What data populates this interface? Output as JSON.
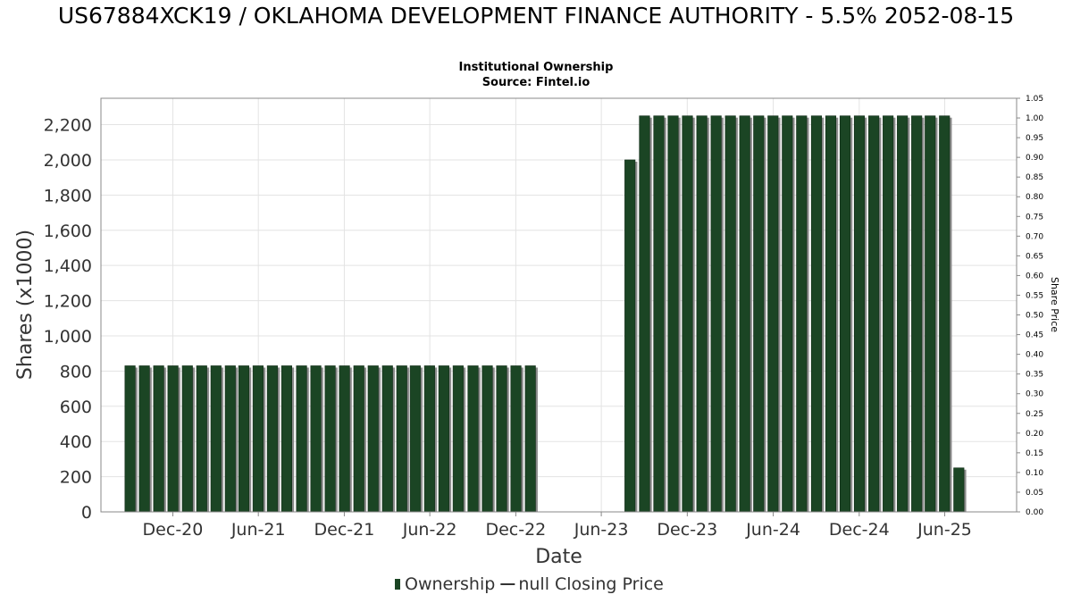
{
  "chart_data": {
    "type": "bar",
    "title": "US67884XCK19 / OKLAHOMA DEVELOPMENT FINANCE AUTHORITY - 5.5% 2052-08-15",
    "subtitle": "Institutional Ownership",
    "source": "Source: Fintel.io",
    "xlabel": "Date",
    "ylabel": "Shares (x1000)",
    "ylabel_right": "Share Price",
    "ylim": [
      0,
      2350
    ],
    "ylim_right": [
      0,
      1.05
    ],
    "grid": true,
    "legend_position": "bottom",
    "y_ticks": [
      {
        "value": 0,
        "label": "0"
      },
      {
        "value": 200,
        "label": "200"
      },
      {
        "value": 400,
        "label": "400"
      },
      {
        "value": 600,
        "label": "600"
      },
      {
        "value": 800,
        "label": "800"
      },
      {
        "value": 1000,
        "label": "1,000"
      },
      {
        "value": 1200,
        "label": "1,200"
      },
      {
        "value": 1400,
        "label": "1,400"
      },
      {
        "value": 1600,
        "label": "1,600"
      },
      {
        "value": 1800,
        "label": "1,800"
      },
      {
        "value": 2000,
        "label": "2,000"
      },
      {
        "value": 2200,
        "label": "2,200"
      }
    ],
    "y_right_ticks": [
      "0.00",
      "0.05",
      "0.10",
      "0.15",
      "0.20",
      "0.25",
      "0.30",
      "0.35",
      "0.40",
      "0.45",
      "0.50",
      "0.55",
      "0.60",
      "0.65",
      "0.70",
      "0.75",
      "0.80",
      "0.85",
      "0.90",
      "0.95",
      "1.00",
      "1.05"
    ],
    "x_range": [
      "2020-07-01",
      "2025-11-01"
    ],
    "x_ticks": [
      {
        "date": "2020-12-01",
        "label": "Dec-20"
      },
      {
        "date": "2021-06-01",
        "label": "Jun-21"
      },
      {
        "date": "2021-12-01",
        "label": "Dec-21"
      },
      {
        "date": "2022-06-01",
        "label": "Jun-22"
      },
      {
        "date": "2022-12-01",
        "label": "Dec-22"
      },
      {
        "date": "2023-06-01",
        "label": "Jun-23"
      },
      {
        "date": "2023-12-01",
        "label": "Dec-23"
      },
      {
        "date": "2024-06-01",
        "label": "Jun-24"
      },
      {
        "date": "2024-12-01",
        "label": "Dec-24"
      },
      {
        "date": "2025-06-01",
        "label": "Jun-25"
      }
    ],
    "series": [
      {
        "name": "Ownership",
        "color": "#1b4524",
        "bars": [
          {
            "start": "2020-09-01",
            "end": "2021-01-01",
            "value": 830
          },
          {
            "start": "2021-01-01",
            "end": "2021-05-01",
            "value": 830
          },
          {
            "start": "2021-05-01",
            "end": "2021-09-01",
            "value": 830
          },
          {
            "start": "2021-09-01",
            "end": "2022-01-01",
            "value": 830
          },
          {
            "start": "2022-01-01",
            "end": "2022-05-01",
            "value": 830
          },
          {
            "start": "2022-05-01",
            "end": "2022-09-01",
            "value": 830
          },
          {
            "start": "2022-09-01",
            "end": "2023-01-01",
            "value": 830
          },
          {
            "start": "2023-01-01",
            "end": "2023-01-01",
            "value": 830
          },
          {
            "start": "2023-08-01",
            "end": "2023-09-01",
            "value": 2000
          },
          {
            "start": "2023-09-01",
            "end": "2024-01-01",
            "value": 2250
          },
          {
            "start": "2024-01-01",
            "end": "2024-05-01",
            "value": 2250
          },
          {
            "start": "2024-05-01",
            "end": "2024-09-01",
            "value": 2250
          },
          {
            "start": "2024-09-01",
            "end": "2025-01-01",
            "value": 2250
          },
          {
            "start": "2025-01-01",
            "end": "2025-05-01",
            "value": 2250
          },
          {
            "start": "2025-05-01",
            "end": "2025-07-01",
            "value": 2250
          },
          {
            "start": "2025-07-01",
            "end": "2025-08-01",
            "value": 250
          }
        ]
      }
    ],
    "legend": [
      {
        "label": "Ownership",
        "color": "#1b4524",
        "marker": "bar"
      },
      {
        "label": "null Closing Price",
        "color": "#333333",
        "marker": "line"
      }
    ]
  }
}
